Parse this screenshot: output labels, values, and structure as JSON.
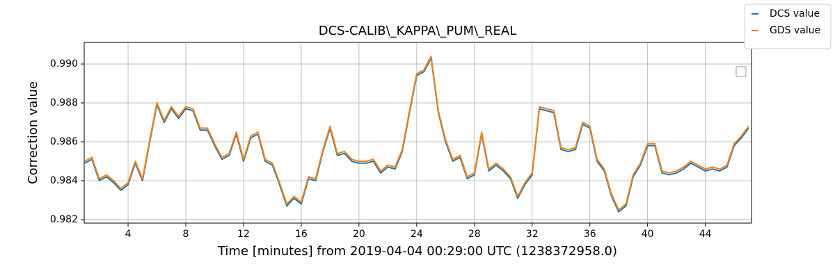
{
  "chart_data": {
    "type": "line",
    "title": "DCS-CALIB\\_KAPPA\\_PUM\\_REAL",
    "xlabel": "Time [minutes] from 2019-04-04 00:29:00 UTC (1238372958.0)",
    "ylabel": "Correction value",
    "x": [
      1.0,
      1.5,
      2.0,
      2.5,
      3.0,
      3.5,
      4.0,
      4.5,
      5.0,
      5.5,
      6.0,
      6.5,
      7.0,
      7.5,
      8.0,
      8.5,
      9.0,
      9.5,
      10.0,
      10.5,
      11.0,
      11.5,
      12.0,
      12.5,
      13.0,
      13.5,
      14.0,
      14.5,
      15.0,
      15.5,
      16.0,
      16.5,
      17.0,
      17.5,
      18.0,
      18.5,
      19.0,
      19.5,
      20.0,
      20.5,
      21.0,
      21.5,
      22.0,
      22.5,
      23.0,
      23.5,
      24.0,
      24.5,
      25.0,
      25.5,
      26.0,
      26.5,
      27.0,
      27.5,
      28.0,
      28.5,
      29.0,
      29.5,
      30.0,
      30.5,
      31.0,
      31.5,
      32.0,
      32.5,
      33.0,
      33.5,
      34.0,
      34.5,
      35.0,
      35.5,
      36.0,
      36.5,
      37.0,
      37.5,
      38.0,
      38.5,
      39.0,
      39.5,
      40.0,
      40.5,
      41.0,
      41.5,
      42.0,
      42.5,
      43.0,
      43.5,
      44.0,
      44.5,
      45.0,
      45.5,
      46.0,
      46.5,
      47.0
    ],
    "series": [
      {
        "name": "DCS value",
        "color": "#1f77b4",
        "values": [
          0.9849,
          0.9851,
          0.984,
          0.9842,
          0.9839,
          0.9835,
          0.9838,
          0.9849,
          0.984,
          0.986,
          0.9879,
          0.987,
          0.9877,
          0.9872,
          0.9877,
          0.9876,
          0.9866,
          0.9866,
          0.9858,
          0.9851,
          0.9853,
          0.9864,
          0.985,
          0.9862,
          0.9864,
          0.985,
          0.9848,
          0.9838,
          0.9827,
          0.9831,
          0.9828,
          0.9841,
          0.984,
          0.9855,
          0.9867,
          0.9853,
          0.9854,
          0.985,
          0.9849,
          0.9849,
          0.985,
          0.9844,
          0.9847,
          0.9846,
          0.9855,
          0.9875,
          0.9894,
          0.9896,
          0.9903,
          0.9875,
          0.986,
          0.985,
          0.9852,
          0.9841,
          0.9843,
          0.9864,
          0.9845,
          0.9848,
          0.9845,
          0.9841,
          0.9831,
          0.9838,
          0.9843,
          0.9877,
          0.9876,
          0.9875,
          0.9856,
          0.9855,
          0.9856,
          0.9869,
          0.9867,
          0.985,
          0.9845,
          0.9832,
          0.9824,
          0.9827,
          0.9842,
          0.9848,
          0.9858,
          0.9858,
          0.9844,
          0.9843,
          0.9844,
          0.9846,
          0.9849,
          0.9847,
          0.9845,
          0.9846,
          0.9845,
          0.9847,
          0.9858,
          0.9862,
          0.9867
        ]
      },
      {
        "name": "GDS value",
        "color": "#ff7f0e",
        "values": [
          0.985,
          0.9852,
          0.9841,
          0.9843,
          0.984,
          0.9836,
          0.9839,
          0.985,
          0.9841,
          0.9861,
          0.988,
          0.9871,
          0.9878,
          0.9873,
          0.9878,
          0.9877,
          0.9867,
          0.9867,
          0.9859,
          0.9852,
          0.9854,
          0.9865,
          0.9851,
          0.9863,
          0.9865,
          0.9851,
          0.9849,
          0.9839,
          0.9828,
          0.9832,
          0.9829,
          0.9842,
          0.9841,
          0.9856,
          0.9868,
          0.9854,
          0.9855,
          0.9851,
          0.985,
          0.985,
          0.9851,
          0.9845,
          0.9848,
          0.9847,
          0.9856,
          0.9876,
          0.9895,
          0.9897,
          0.9904,
          0.9876,
          0.9861,
          0.9851,
          0.9853,
          0.9842,
          0.9844,
          0.9865,
          0.9846,
          0.9849,
          0.9846,
          0.9842,
          0.9832,
          0.9839,
          0.9844,
          0.9878,
          0.9877,
          0.9876,
          0.9857,
          0.9856,
          0.9857,
          0.987,
          0.9868,
          0.9851,
          0.9846,
          0.9833,
          0.9825,
          0.9828,
          0.9843,
          0.9849,
          0.9859,
          0.9859,
          0.9845,
          0.9844,
          0.9845,
          0.9847,
          0.985,
          0.9848,
          0.9846,
          0.9847,
          0.9846,
          0.9848,
          0.9859,
          0.9863,
          0.9868
        ]
      }
    ],
    "xlim": [
      0.96,
      47.2
    ],
    "ylim": [
      0.98182,
      0.99111
    ],
    "xticks": [
      4,
      8,
      12,
      16,
      20,
      24,
      28,
      32,
      36,
      40,
      44
    ],
    "yticks": [
      0.982,
      0.984,
      0.986,
      0.988,
      {
        "value": 0.99,
        "label": "0.990"
      }
    ],
    "grid": true,
    "legend": "upper right"
  }
}
